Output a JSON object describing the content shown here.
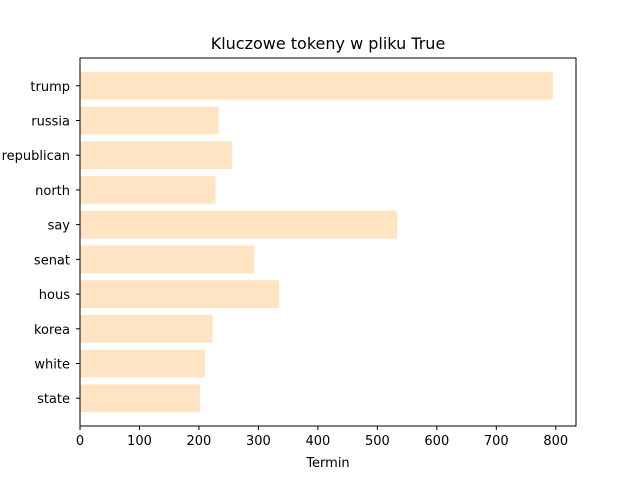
{
  "chart_data": {
    "type": "bar",
    "orientation": "horizontal",
    "title": "Kluczowe tokeny w pliku True",
    "xlabel": "Termin",
    "ylabel": "",
    "categories": [
      "trump",
      "russia",
      "republican",
      "north",
      "say",
      "senat",
      "hous",
      "korea",
      "white",
      "state"
    ],
    "values": [
      795,
      233,
      256,
      228,
      533,
      293,
      335,
      223,
      210,
      202
    ],
    "xlim": [
      0,
      834
    ],
    "xticks": [
      0,
      100,
      200,
      300,
      400,
      500,
      600,
      700,
      800
    ],
    "grid": false,
    "bar_color": "#ffe4c4"
  }
}
